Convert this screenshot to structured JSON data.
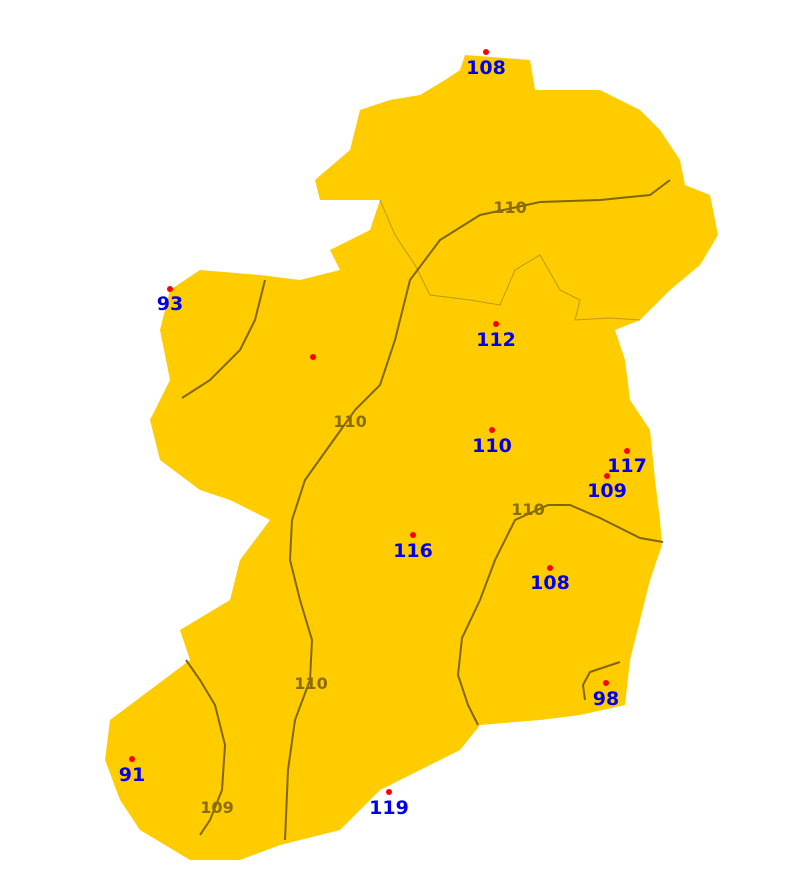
{
  "colors": {
    "land": "#ffcc00",
    "sea": "#ffffff",
    "station_dot": "#ff0000",
    "station_label": "#0000ee",
    "contour": "#806600",
    "contour_label": "#8a6d00"
  },
  "stations": [
    {
      "value": "108"
    },
    {
      "value": "93"
    },
    {
      "value": "112"
    },
    {
      "value": ""
    },
    {
      "value": "110"
    },
    {
      "value": "117"
    },
    {
      "value": "109"
    },
    {
      "value": "116"
    },
    {
      "value": "108"
    },
    {
      "value": "98"
    },
    {
      "value": "91"
    },
    {
      "value": "119"
    }
  ],
  "contour_labels": [
    "110",
    "110",
    "110",
    "110",
    "109"
  ]
}
